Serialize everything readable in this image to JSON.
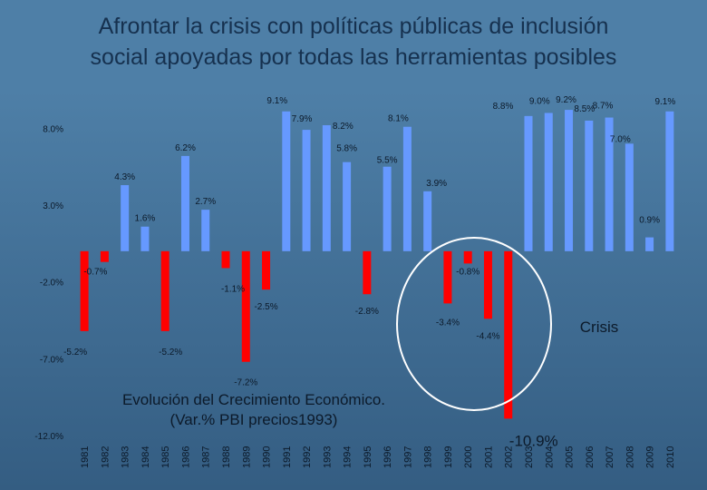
{
  "slide": {
    "title_line1": "Afrontar la crisis con políticas públicas de inclusión",
    "title_line2": "social apoyadas por todas las herramientas posibles"
  },
  "chart_data": {
    "type": "bar",
    "title": "Evolución del Crecimiento Económico.",
    "subtitle": "(Var.% PBI precios1993)",
    "ylim": [
      -12,
      9.5
    ],
    "yticks": [
      -12,
      -7,
      -2,
      3,
      8
    ],
    "ytick_labels": [
      "-12.0%",
      "-7.0%",
      "-2.0%",
      "3.0%",
      "8.0%"
    ],
    "gridlines": false,
    "categories": [
      "1981",
      "1982",
      "1983",
      "1984",
      "1985",
      "1986",
      "1987",
      "1988",
      "1989",
      "1990",
      "1991",
      "1992",
      "1993",
      "1994",
      "1995",
      "1996",
      "1997",
      "1998",
      "1999",
      "2000",
      "2001",
      "2002",
      "2003",
      "2004",
      "2005",
      "2006",
      "2007",
      "2008",
      "2009",
      "2010"
    ],
    "values": [
      -5.2,
      -0.7,
      4.3,
      1.6,
      -5.2,
      6.2,
      2.7,
      -1.1,
      -7.2,
      -2.5,
      9.1,
      7.9,
      8.2,
      5.8,
      -2.8,
      5.5,
      8.1,
      3.9,
      -3.4,
      -0.8,
      -4.4,
      -10.9,
      8.8,
      9.0,
      9.2,
      8.5,
      8.7,
      7.0,
      0.9,
      9.1
    ],
    "data_labels": [
      "-5.2%",
      "-0.7%",
      "4.3%",
      "1.6%",
      "-5.2%",
      "6.2%",
      "2.7%",
      "-1.1%",
      "-7.2%",
      "-2.5%",
      "9.1%",
      "7.9%",
      "8.2%",
      "5.8%",
      "-2.8%",
      "5.5%",
      "8.1%",
      "3.9%",
      "-3.4%",
      "-0.8%",
      "-4.4%",
      "-10.9%",
      "8.8%",
      "9.0%",
      "9.2%",
      "8.5%",
      "8.7%",
      "7.0%",
      "0.9%",
      "9.1%"
    ],
    "positive_color": "#6699ff",
    "negative_color": "#ff0000",
    "annotation": {
      "text": "Crisis",
      "years_circled": [
        "1998",
        "1999",
        "2000",
        "2001"
      ]
    }
  }
}
